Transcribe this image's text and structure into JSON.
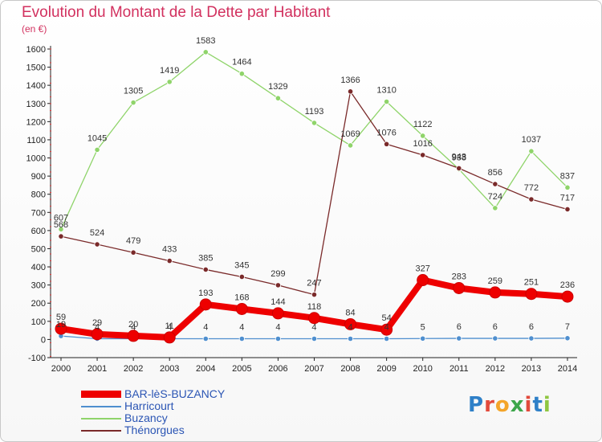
{
  "chart_data": {
    "type": "line",
    "title": "Evolution du Montant de la Dette par Habitant",
    "subtitle": "(en €)",
    "x": [
      "2000",
      "2001",
      "2002",
      "2003",
      "2004",
      "2005",
      "2006",
      "2007",
      "2008",
      "2009",
      "2010",
      "2011",
      "2012",
      "2013",
      "2014"
    ],
    "ylim": [
      -100,
      1600
    ],
    "yticks": [
      -100,
      0,
      100,
      200,
      300,
      400,
      500,
      600,
      700,
      800,
      900,
      1000,
      1100,
      1200,
      1300,
      1400,
      1500,
      1600
    ],
    "grid": false,
    "legend_position": "bottom-left",
    "series": [
      {
        "name": "BAR-lèS-BUZANCY",
        "color": "#ee0000",
        "values": [
          59,
          29,
          20,
          11,
          193,
          168,
          144,
          118,
          84,
          54,
          327,
          283,
          259,
          251,
          236
        ]
      },
      {
        "name": "Harricourt",
        "color": "#4f8fcf",
        "values": [
          19,
          4,
          4,
          4,
          4,
          4,
          4,
          4,
          4,
          4,
          5,
          6,
          6,
          6,
          7
        ]
      },
      {
        "name": "Buzancy",
        "color": "#8fd46a",
        "values": [
          607,
          1045,
          1305,
          1419,
          1583,
          1464,
          1329,
          1193,
          1069,
          1310,
          1122,
          938,
          724,
          1037,
          837
        ]
      },
      {
        "name": "Thénorgues",
        "color": "#7a2a2a",
        "values": [
          568,
          524,
          479,
          433,
          385,
          345,
          299,
          247,
          1366,
          1076,
          1016,
          943,
          856,
          772,
          717
        ]
      }
    ]
  },
  "brand": {
    "letters": [
      "P",
      "r",
      "o",
      "x",
      "i",
      "t",
      "i"
    ]
  }
}
